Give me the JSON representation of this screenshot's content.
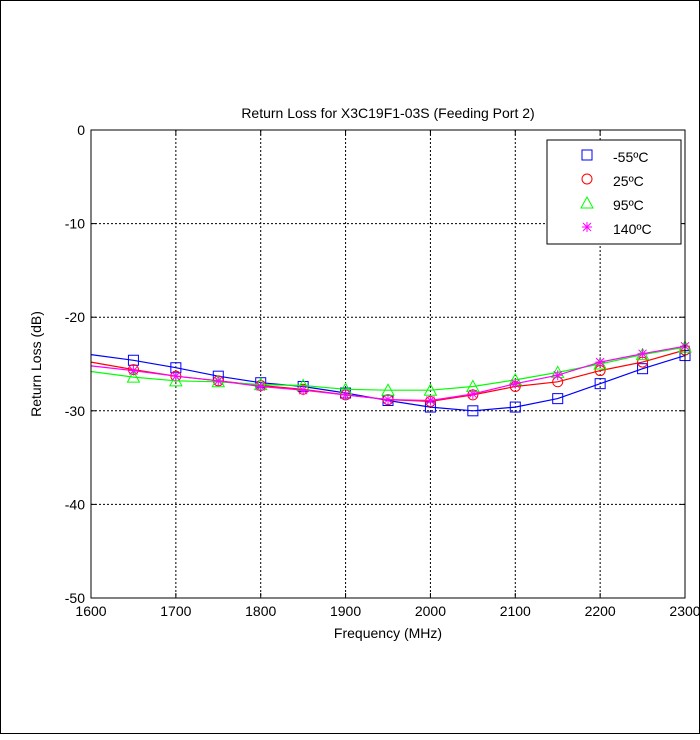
{
  "chart_data": {
    "type": "line",
    "title": "Return Loss for X3C19F1-03S (Feeding Port 2)",
    "xlabel": "Frequency (MHz)",
    "ylabel": "Return Loss (dB)",
    "xlim": [
      1600,
      2300
    ],
    "ylim": [
      -50,
      0
    ],
    "xticks": [
      1600,
      1700,
      1800,
      1900,
      2000,
      2100,
      2200,
      2300
    ],
    "yticks": [
      0,
      -10,
      -20,
      -30,
      -40,
      -50
    ],
    "grid": true,
    "legend_position": "top-right",
    "x": [
      1600,
      1650,
      1700,
      1750,
      1800,
      1850,
      1900,
      1950,
      2000,
      2050,
      2100,
      2150,
      2200,
      2250,
      2300
    ],
    "series": [
      {
        "name": "-55ºC",
        "color": "#0000ff",
        "marker": "square",
        "values": [
          -24.0,
          -24.6,
          -25.4,
          -26.3,
          -27.0,
          -27.4,
          -28.1,
          -28.9,
          -29.6,
          -30.0,
          -29.6,
          -28.7,
          -27.1,
          -25.5,
          -24.1
        ]
      },
      {
        "name": "25ºC",
        "color": "#ff0000",
        "marker": "circle",
        "values": [
          -24.8,
          -25.6,
          -26.3,
          -26.8,
          -27.3,
          -27.7,
          -28.3,
          -28.8,
          -29.0,
          -28.3,
          -27.4,
          -26.9,
          -25.7,
          -24.8,
          -23.5
        ]
      },
      {
        "name": "95ºC",
        "color": "#00ff00",
        "marker": "triangle",
        "values": [
          -25.8,
          -26.4,
          -26.8,
          -26.9,
          -27.2,
          -27.3,
          -27.7,
          -27.8,
          -27.8,
          -27.4,
          -26.7,
          -25.9,
          -25.0,
          -24.0,
          -23.2
        ]
      },
      {
        "name": "140ºC",
        "color": "#ff00ff",
        "marker": "asterisk",
        "values": [
          -25.2,
          -25.7,
          -26.3,
          -26.8,
          -27.4,
          -27.8,
          -28.3,
          -28.8,
          -28.9,
          -28.2,
          -27.1,
          -26.2,
          -24.8,
          -23.9,
          -23.1
        ]
      }
    ]
  }
}
